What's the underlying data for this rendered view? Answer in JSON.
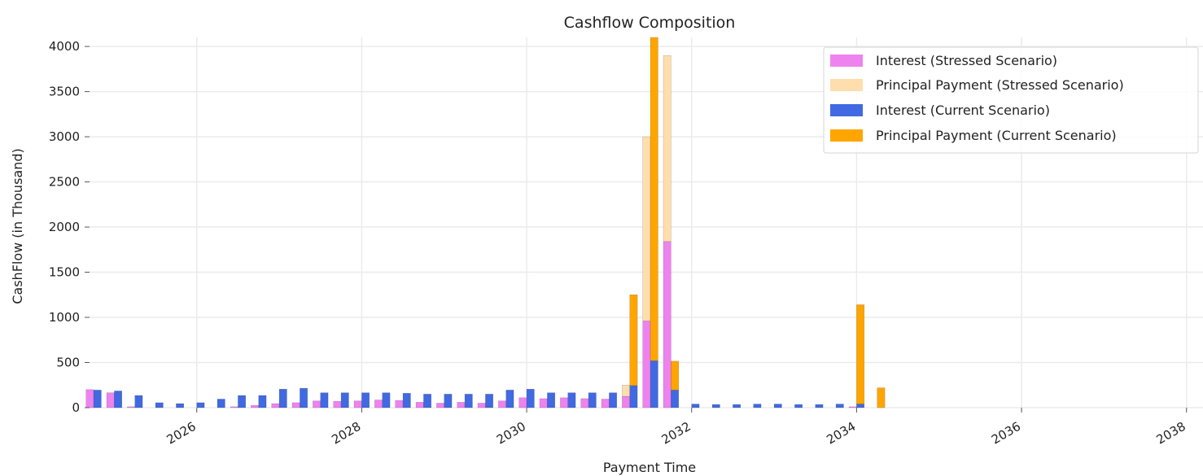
{
  "chart_data": {
    "type": "bar",
    "title": "Cashflow Composition",
    "xlabel": "Payment Time",
    "ylabel": "CashFlow (in Thousand)",
    "xlim": [
      2024.7,
      2038.2
    ],
    "ylim": [
      0,
      4100
    ],
    "x_ticks": [
      2026,
      2028,
      2030,
      2032,
      2034,
      2036,
      2038
    ],
    "x_tick_labels": [
      "2026",
      "2028",
      "2030",
      "2032",
      "2034",
      "2036",
      "2038"
    ],
    "y_ticks": [
      0,
      500,
      1000,
      1500,
      2000,
      2500,
      3000,
      3500,
      4000
    ],
    "y_tick_labels": [
      "0",
      "500",
      "1000",
      "1500",
      "2000",
      "2500",
      "3000",
      "3500",
      "4000"
    ],
    "grid": true,
    "legend_position": "top-right",
    "stacked": true,
    "series": [
      {
        "name": "Interest (Stressed Scenario)",
        "group": "stressed",
        "color": "#ee82ee"
      },
      {
        "name": "Principal Payment (Stressed Scenario)",
        "group": "stressed",
        "color": "#ffdead"
      },
      {
        "name": "Interest (Current Scenario)",
        "group": "current",
        "color": "#4169e1"
      },
      {
        "name": "Principal Payment (Current Scenario)",
        "group": "current",
        "color": "#ffa500"
      }
    ],
    "stressed": [
      {
        "x": 2024.75,
        "interest": 200,
        "principal": 0
      },
      {
        "x": 2025.0,
        "interest": 165,
        "principal": 0
      },
      {
        "x": 2025.25,
        "interest": 10,
        "principal": 0
      },
      {
        "x": 2026.5,
        "interest": 10,
        "principal": 0
      },
      {
        "x": 2026.75,
        "interest": 25,
        "principal": 0
      },
      {
        "x": 2027.0,
        "interest": 45,
        "principal": 0
      },
      {
        "x": 2027.25,
        "interest": 55,
        "principal": 0
      },
      {
        "x": 2027.5,
        "interest": 75,
        "principal": 0
      },
      {
        "x": 2027.75,
        "interest": 70,
        "principal": 0
      },
      {
        "x": 2028.0,
        "interest": 75,
        "principal": 0
      },
      {
        "x": 2028.25,
        "interest": 85,
        "principal": 0
      },
      {
        "x": 2028.5,
        "interest": 80,
        "principal": 0
      },
      {
        "x": 2028.75,
        "interest": 60,
        "principal": 0
      },
      {
        "x": 2029.0,
        "interest": 50,
        "principal": 0
      },
      {
        "x": 2029.25,
        "interest": 60,
        "principal": 0
      },
      {
        "x": 2029.5,
        "interest": 50,
        "principal": 0
      },
      {
        "x": 2029.75,
        "interest": 75,
        "principal": 0
      },
      {
        "x": 2030.0,
        "interest": 110,
        "principal": 0
      },
      {
        "x": 2030.25,
        "interest": 100,
        "principal": 0
      },
      {
        "x": 2030.5,
        "interest": 110,
        "principal": 0
      },
      {
        "x": 2030.75,
        "interest": 100,
        "principal": 0
      },
      {
        "x": 2031.0,
        "interest": 95,
        "principal": 0
      },
      {
        "x": 2031.25,
        "interest": 125,
        "principal": 125
      },
      {
        "x": 2031.5,
        "interest": 960,
        "principal": 2040
      },
      {
        "x": 2031.75,
        "interest": 1840,
        "principal": 2060
      },
      {
        "x": 2034.0,
        "interest": 10,
        "principal": 0
      }
    ],
    "current": [
      {
        "x": 2024.75,
        "interest": 195,
        "principal": 0
      },
      {
        "x": 2025.0,
        "interest": 185,
        "principal": 0
      },
      {
        "x": 2025.25,
        "interest": 135,
        "principal": 0
      },
      {
        "x": 2025.5,
        "interest": 55,
        "principal": 0
      },
      {
        "x": 2025.75,
        "interest": 45,
        "principal": 0
      },
      {
        "x": 2026.0,
        "interest": 55,
        "principal": 0
      },
      {
        "x": 2026.25,
        "interest": 95,
        "principal": 0
      },
      {
        "x": 2026.5,
        "interest": 135,
        "principal": 0
      },
      {
        "x": 2026.75,
        "interest": 135,
        "principal": 0
      },
      {
        "x": 2027.0,
        "interest": 205,
        "principal": 0
      },
      {
        "x": 2027.25,
        "interest": 215,
        "principal": 0
      },
      {
        "x": 2027.5,
        "interest": 165,
        "principal": 0
      },
      {
        "x": 2027.75,
        "interest": 165,
        "principal": 0
      },
      {
        "x": 2028.0,
        "interest": 165,
        "principal": 0
      },
      {
        "x": 2028.25,
        "interest": 165,
        "principal": 0
      },
      {
        "x": 2028.5,
        "interest": 160,
        "principal": 0
      },
      {
        "x": 2028.75,
        "interest": 150,
        "principal": 0
      },
      {
        "x": 2029.0,
        "interest": 150,
        "principal": 0
      },
      {
        "x": 2029.25,
        "interest": 150,
        "principal": 0
      },
      {
        "x": 2029.5,
        "interest": 150,
        "principal": 0
      },
      {
        "x": 2029.75,
        "interest": 195,
        "principal": 0
      },
      {
        "x": 2030.0,
        "interest": 205,
        "principal": 0
      },
      {
        "x": 2030.25,
        "interest": 165,
        "principal": 0
      },
      {
        "x": 2030.5,
        "interest": 165,
        "principal": 0
      },
      {
        "x": 2030.75,
        "interest": 165,
        "principal": 0
      },
      {
        "x": 2031.0,
        "interest": 165,
        "principal": 0
      },
      {
        "x": 2031.25,
        "interest": 245,
        "principal": 1005
      },
      {
        "x": 2031.5,
        "interest": 520,
        "principal": 3580
      },
      {
        "x": 2031.75,
        "interest": 195,
        "principal": 320
      },
      {
        "x": 2032.0,
        "interest": 40,
        "principal": 0
      },
      {
        "x": 2032.25,
        "interest": 35,
        "principal": 0
      },
      {
        "x": 2032.5,
        "interest": 35,
        "principal": 0
      },
      {
        "x": 2032.75,
        "interest": 40,
        "principal": 0
      },
      {
        "x": 2033.0,
        "interest": 40,
        "principal": 0
      },
      {
        "x": 2033.25,
        "interest": 35,
        "principal": 0
      },
      {
        "x": 2033.5,
        "interest": 35,
        "principal": 0
      },
      {
        "x": 2033.75,
        "interest": 40,
        "principal": 0
      },
      {
        "x": 2034.0,
        "interest": 40,
        "principal": 1100
      },
      {
        "x": 2034.25,
        "interest": 0,
        "principal": 220
      }
    ]
  }
}
